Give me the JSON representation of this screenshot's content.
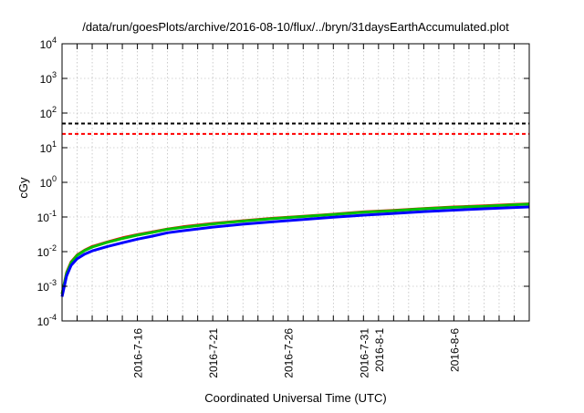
{
  "chart_data": {
    "type": "line",
    "title": "/data/run/goesPlots/archive/2016-08-10/flux/../bryn/31daysEarthAccumulated.plot",
    "xlabel": "Coordinated Universal Time (UTC)",
    "ylabel": "cGy",
    "x_units": "days since 2016-7-11",
    "xlim": [
      0,
      31
    ],
    "ylim": [
      0.0001,
      10000
    ],
    "yscale": "log",
    "grid": true,
    "legend": "none",
    "y_ticks": [
      {
        "value": -4,
        "label": "10",
        "exp": "-4"
      },
      {
        "value": -3,
        "label": "10",
        "exp": "-3"
      },
      {
        "value": -2,
        "label": "10",
        "exp": "-2"
      },
      {
        "value": -1,
        "label": "10",
        "exp": "-1"
      },
      {
        "value": 0,
        "label": "10",
        "exp": "0"
      },
      {
        "value": 1,
        "label": "10",
        "exp": "1"
      },
      {
        "value": 2,
        "label": "10",
        "exp": "2"
      },
      {
        "value": 3,
        "label": "10",
        "exp": "3"
      },
      {
        "value": 4,
        "label": "10",
        "exp": "4"
      }
    ],
    "x_ticks": [
      {
        "value": 5,
        "label": "2016-7-16"
      },
      {
        "value": 10,
        "label": "2016-7-21"
      },
      {
        "value": 15,
        "label": "2016-7-26"
      },
      {
        "value": 20,
        "label": "2016-7-31"
      },
      {
        "value": 21,
        "label": "2016-8-1"
      },
      {
        "value": 26,
        "label": "2016-8-6"
      }
    ],
    "thresholds": [
      {
        "name": "black-threshold",
        "value": 50,
        "color": "#000000"
      },
      {
        "name": "red-threshold",
        "value": 25,
        "color": "#ff0000"
      }
    ],
    "series": [
      {
        "name": "red",
        "color": "#ff0000",
        "x": [
          0,
          0.3,
          0.6,
          1,
          1.5,
          2,
          3,
          4,
          5,
          6,
          7,
          8,
          10,
          12,
          14,
          16,
          18,
          20,
          22,
          24,
          26,
          28,
          30,
          31
        ],
        "y": [
          0.0006,
          0.0025,
          0.005,
          0.008,
          0.011,
          0.014,
          0.019,
          0.025,
          0.031,
          0.037,
          0.045,
          0.052,
          0.065,
          0.078,
          0.092,
          0.105,
          0.12,
          0.14,
          0.155,
          0.175,
          0.195,
          0.21,
          0.23,
          0.24
        ]
      },
      {
        "name": "green",
        "color": "#00c000",
        "x": [
          0,
          0.3,
          0.6,
          1,
          1.5,
          2,
          3,
          4,
          5,
          6,
          7,
          8,
          10,
          12,
          14,
          16,
          18,
          20,
          22,
          24,
          26,
          28,
          30,
          31
        ],
        "y": [
          0.0006,
          0.0024,
          0.0048,
          0.0078,
          0.0108,
          0.0135,
          0.0185,
          0.024,
          0.03,
          0.036,
          0.044,
          0.05,
          0.063,
          0.076,
          0.09,
          0.103,
          0.118,
          0.137,
          0.152,
          0.172,
          0.19,
          0.205,
          0.225,
          0.235
        ]
      },
      {
        "name": "blue",
        "color": "#0000ff",
        "x": [
          0,
          0.3,
          0.6,
          1,
          1.5,
          2,
          3,
          4,
          5,
          6,
          7,
          8,
          10,
          12,
          14,
          16,
          18,
          20,
          22,
          24,
          26,
          28,
          30,
          31
        ],
        "y": [
          0.0005,
          0.002,
          0.004,
          0.0062,
          0.0085,
          0.0105,
          0.014,
          0.018,
          0.023,
          0.028,
          0.035,
          0.04,
          0.051,
          0.062,
          0.073,
          0.085,
          0.098,
          0.113,
          0.127,
          0.143,
          0.158,
          0.172,
          0.188,
          0.195
        ]
      }
    ]
  }
}
